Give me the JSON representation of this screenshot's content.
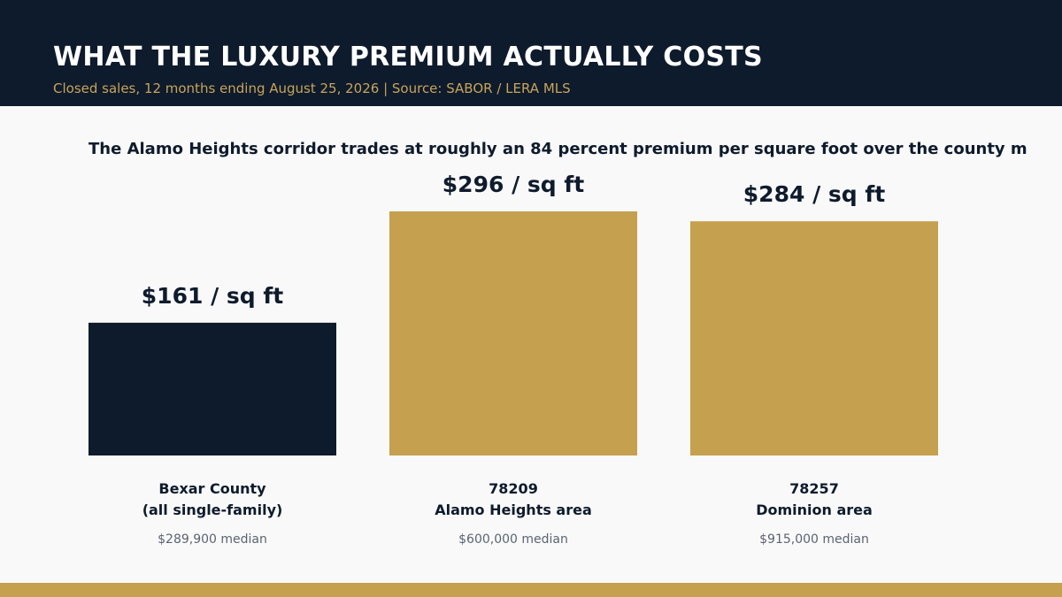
{
  "header": {
    "title": "WHAT THE LUXURY PREMIUM ACTUALLY COSTS",
    "subtitle": "Closed sales, 12 months ending August 25, 2026  |  Source: SABOR / LERA MLS"
  },
  "headline": "The Alamo Heights corridor trades at roughly an 84 percent premium per square foot over the county m",
  "colors": {
    "header_bg": "#0e1b2c",
    "accent_gold": "#c5a04e",
    "navy": "#0e1b2c",
    "muted_text": "#5a6472",
    "background": "#f9f9fa"
  },
  "chart_data": {
    "type": "bar",
    "categories": [
      "Bexar County (all single-family)",
      "78209 Alamo Heights area",
      "78257 Dominion area"
    ],
    "values": [
      161,
      296,
      284
    ],
    "unit": "$ / sq ft",
    "ylim": [
      0,
      296
    ],
    "grid": false,
    "legend": "none",
    "bars": [
      {
        "value": 161,
        "value_label": "$161 / sq ft",
        "label_line1": "Bexar County",
        "label_line2": "(all single-family)",
        "median": "$289,900 median",
        "color": "#0e1b2c"
      },
      {
        "value": 296,
        "value_label": "$296 / sq ft",
        "label_line1": "78209",
        "label_line2": "Alamo Heights area",
        "median": "$600,000 median",
        "color": "#c5a04e"
      },
      {
        "value": 284,
        "value_label": "$284 / sq ft",
        "label_line1": "78257",
        "label_line2": "Dominion area",
        "median": "$915,000 median",
        "color": "#c5a04e"
      }
    ]
  }
}
